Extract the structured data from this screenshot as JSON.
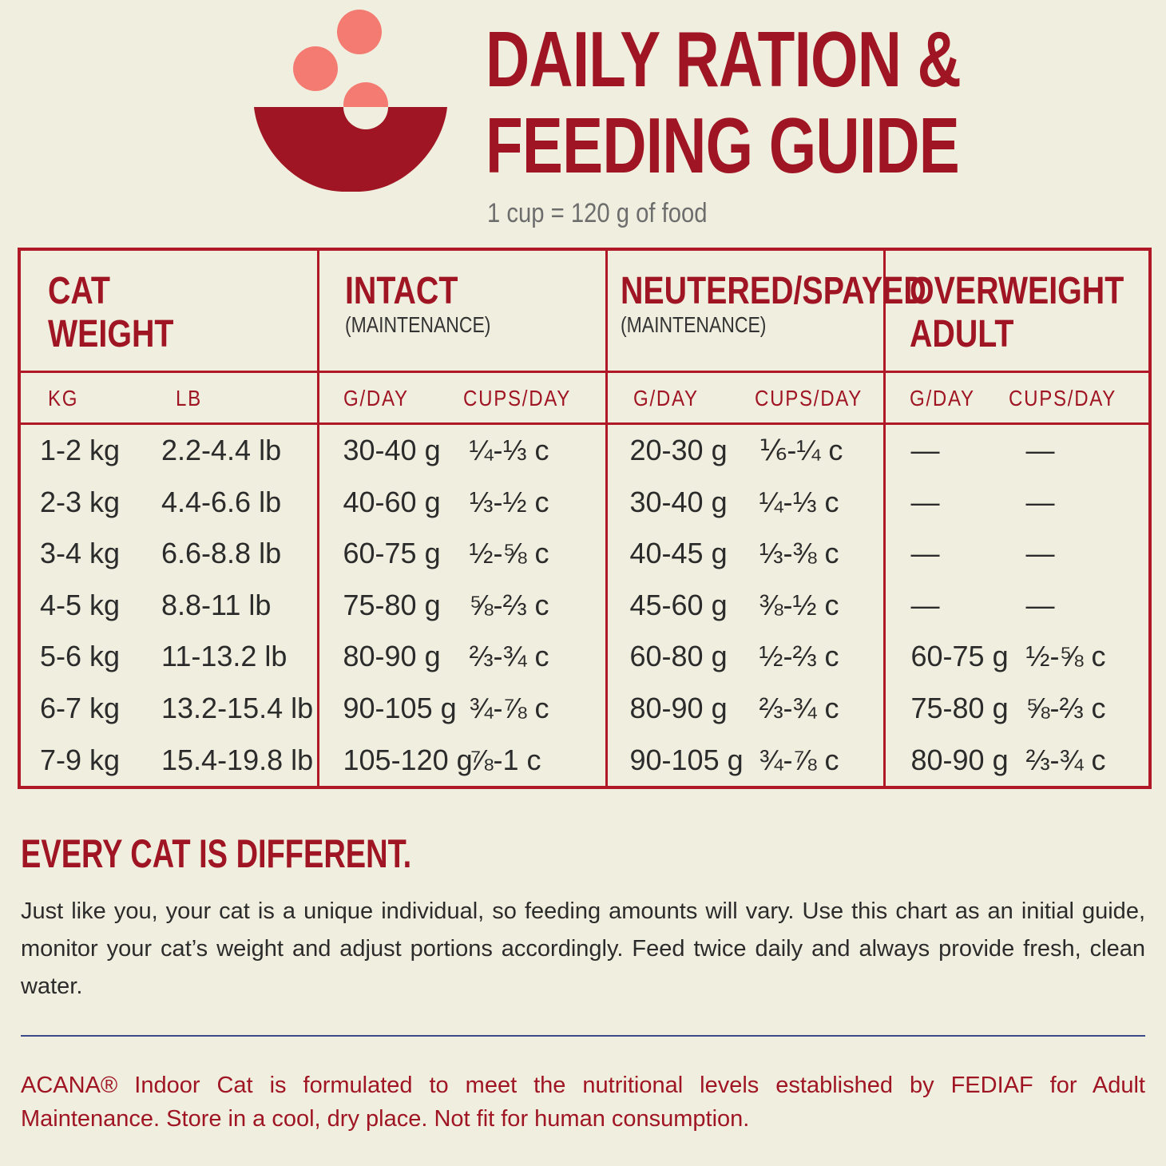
{
  "header": {
    "title_line1": "DAILY RATION &",
    "title_line2": "FEEDING GUIDE",
    "subtitle": "1 cup = 120 g of food",
    "icon": "bowl-with-kibble-icon",
    "colors": {
      "accent": "#a01524",
      "kibble": "#f47b72",
      "background": "#f0efdf"
    }
  },
  "table": {
    "groups": [
      {
        "title_line1": "CAT",
        "title_line2": "WEIGHT",
        "subtitle": "",
        "units": [
          "KG",
          "LB"
        ]
      },
      {
        "title_line1": "INTACT",
        "title_line2": "",
        "subtitle": "(MAINTENANCE)",
        "units": [
          "G/DAY",
          "CUPS/DAY"
        ]
      },
      {
        "title_line1": "NEUTERED/SPAYED",
        "title_line2": "",
        "subtitle": "(MAINTENANCE)",
        "units": [
          "G/DAY",
          "CUPS/DAY"
        ]
      },
      {
        "title_line1": "OVERWEIGHT",
        "title_line2": "ADULT",
        "subtitle": "",
        "units": [
          "G/DAY",
          "CUPS/DAY"
        ]
      }
    ],
    "rows": [
      {
        "kg": "1-2 kg",
        "lb": "2.2-4.4 lb",
        "intact_g": "30-40 g",
        "intact_c": "¼-⅓ c",
        "neutered_g": "20-30 g",
        "neutered_c": "⅙-¼ c",
        "overweight_g": "—",
        "overweight_c": "—"
      },
      {
        "kg": "2-3 kg",
        "lb": "4.4-6.6 lb",
        "intact_g": "40-60 g",
        "intact_c": "⅓-½ c",
        "neutered_g": "30-40 g",
        "neutered_c": "¼-⅓ c",
        "overweight_g": "—",
        "overweight_c": "—"
      },
      {
        "kg": "3-4 kg",
        "lb": "6.6-8.8 lb",
        "intact_g": "60-75 g",
        "intact_c": "½-⅝ c",
        "neutered_g": "40-45 g",
        "neutered_c": "⅓-⅜ c",
        "overweight_g": "—",
        "overweight_c": "—"
      },
      {
        "kg": "4-5 kg",
        "lb": "8.8-11 lb",
        "intact_g": "75-80 g",
        "intact_c": "⅝-⅔ c",
        "neutered_g": "45-60 g",
        "neutered_c": "⅜-½ c",
        "overweight_g": "—",
        "overweight_c": "—"
      },
      {
        "kg": "5-6 kg",
        "lb": "11-13.2 lb",
        "intact_g": "80-90 g",
        "intact_c": "⅔-¾ c",
        "neutered_g": "60-80 g",
        "neutered_c": "½-⅔ c",
        "overweight_g": "60-75 g",
        "overweight_c": "½-⅝ c"
      },
      {
        "kg": "6-7 kg",
        "lb": "13.2-15.4 lb",
        "intact_g": "90-105 g",
        "intact_c": "¾-⅞ c",
        "neutered_g": "80-90 g",
        "neutered_c": "⅔-¾ c",
        "overweight_g": "75-80 g",
        "overweight_c": "⅝-⅔ c"
      },
      {
        "kg": "7-9 kg",
        "lb": "15.4-19.8 lb",
        "intact_g": "105-120 g",
        "intact_c": "⅞-1 c",
        "neutered_g": "90-105 g",
        "neutered_c": "¾-⅞ c",
        "overweight_g": "80-90 g",
        "overweight_c": "⅔-¾ c"
      }
    ]
  },
  "note": {
    "title": "EVERY CAT IS DIFFERENT.",
    "body": "Just like you, your cat is a unique individual, so feeding amounts will vary. Use this chart as an initial guide, monitor your cat’s weight and adjust portions accordingly. Feed twice daily and always provide fresh, clean water."
  },
  "footer": {
    "text": "ACANA® Indoor Cat is formulated to meet the nutritional levels established by FEDIAF for Adult Maintenance. Store in a cool, dry place. Not fit for human consumption."
  }
}
